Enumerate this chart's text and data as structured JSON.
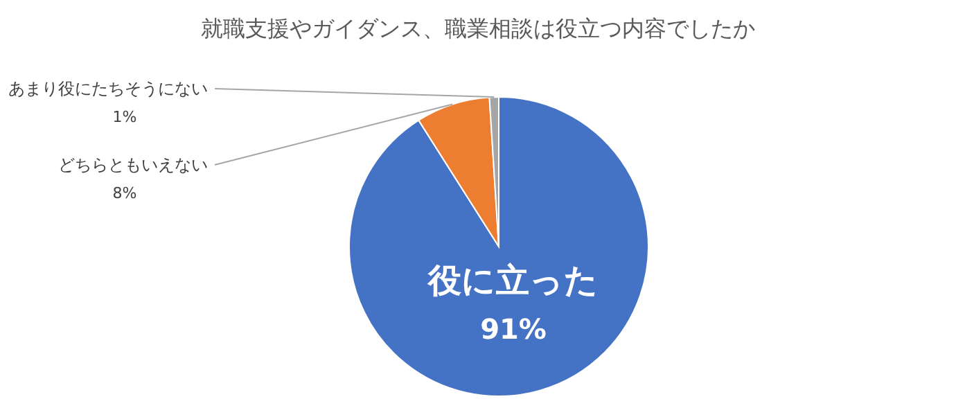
{
  "chart_data": {
    "type": "pie",
    "title": "就職支援やガイダンス、職業相談は役立つ内容でしたか",
    "categories": [
      "役に立った",
      "どちらともいえない",
      "あまり役にたちそうにない"
    ],
    "values": [
      91,
      8,
      1
    ],
    "value_labels": [
      "91%",
      "8%",
      "1%"
    ],
    "colors": [
      "#4472c4",
      "#ed7d31",
      "#a5a5a5"
    ]
  }
}
